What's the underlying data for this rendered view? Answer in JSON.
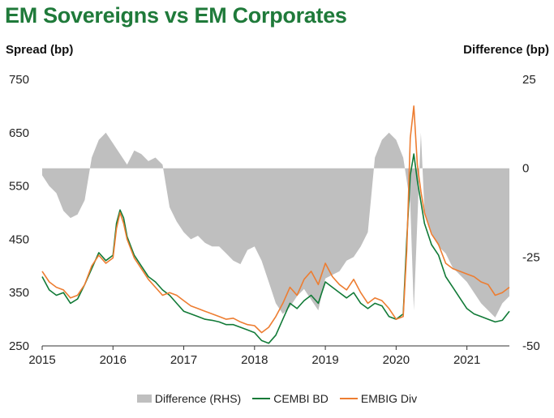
{
  "chart_data": {
    "type": "line",
    "title": "EM Sovereigns vs EM Corporates",
    "ylabel": "Spread (bp)",
    "y2label": "Difference (bp)",
    "ylim": [
      250,
      750
    ],
    "y2lim": [
      -50,
      25
    ],
    "yticks": [
      250,
      350,
      450,
      550,
      650,
      750
    ],
    "y2ticks": [
      -50,
      -25,
      0,
      25
    ],
    "xlim": [
      2015.0,
      2021.6
    ],
    "xticks": [
      "2015",
      "2016",
      "2017",
      "2018",
      "2019",
      "2020",
      "2021"
    ],
    "grid": false,
    "legend": "bottom",
    "series": [
      {
        "name": "Difference (RHS)",
        "kind": "area",
        "axis": "right",
        "color": "#bfbfbf",
        "x": [
          2015.0,
          2015.1,
          2015.2,
          2015.3,
          2015.4,
          2015.5,
          2015.6,
          2015.7,
          2015.8,
          2015.9,
          2016.0,
          2016.1,
          2016.2,
          2016.3,
          2016.4,
          2016.5,
          2016.6,
          2016.7,
          2016.8,
          2016.9,
          2017.0,
          2017.1,
          2017.2,
          2017.3,
          2017.4,
          2017.5,
          2017.6,
          2017.7,
          2017.8,
          2017.9,
          2018.0,
          2018.1,
          2018.2,
          2018.3,
          2018.4,
          2018.5,
          2018.6,
          2018.7,
          2018.8,
          2018.9,
          2019.0,
          2019.1,
          2019.2,
          2019.3,
          2019.4,
          2019.5,
          2019.6,
          2019.7,
          2019.8,
          2019.9,
          2020.0,
          2020.1,
          2020.2,
          2020.25,
          2020.3,
          2020.35,
          2020.4,
          2020.5,
          2020.6,
          2020.7,
          2020.8,
          2020.9,
          2021.0,
          2021.1,
          2021.2,
          2021.3,
          2021.4,
          2021.5,
          2021.6
        ],
        "values": [
          -2,
          -5,
          -7,
          -12,
          -14,
          -13,
          -9,
          3,
          8,
          10,
          7,
          4,
          1,
          5,
          4,
          2,
          3,
          1,
          -11,
          -15,
          -18,
          -20,
          -19,
          -21,
          -22,
          -22,
          -24,
          -26,
          -27,
          -23,
          -22,
          -26,
          -32,
          -38,
          -41,
          -39,
          -36,
          -34,
          -37,
          -40,
          -31,
          -30,
          -29,
          -26,
          -25,
          -22,
          -18,
          3,
          8,
          10,
          8,
          3,
          -10,
          -40,
          -15,
          10,
          -12,
          -18,
          -22,
          -24,
          -28,
          -30,
          -32,
          -35,
          -38,
          -40,
          -42,
          -38,
          -36
        ]
      },
      {
        "name": "CEMBI BD",
        "kind": "line",
        "axis": "left",
        "color": "#117a37",
        "x": [
          2015.0,
          2015.1,
          2015.2,
          2015.3,
          2015.4,
          2015.5,
          2015.6,
          2015.7,
          2015.8,
          2015.9,
          2016.0,
          2016.05,
          2016.1,
          2016.15,
          2016.2,
          2016.3,
          2016.4,
          2016.5,
          2016.6,
          2016.7,
          2016.8,
          2016.9,
          2017.0,
          2017.1,
          2017.2,
          2017.3,
          2017.4,
          2017.5,
          2017.6,
          2017.7,
          2017.8,
          2017.9,
          2018.0,
          2018.1,
          2018.2,
          2018.3,
          2018.4,
          2018.5,
          2018.6,
          2018.7,
          2018.8,
          2018.9,
          2019.0,
          2019.1,
          2019.2,
          2019.3,
          2019.4,
          2019.5,
          2019.6,
          2019.7,
          2019.8,
          2019.9,
          2020.0,
          2020.1,
          2020.15,
          2020.2,
          2020.25,
          2020.3,
          2020.35,
          2020.4,
          2020.5,
          2020.6,
          2020.7,
          2020.8,
          2020.9,
          2021.0,
          2021.1,
          2021.2,
          2021.3,
          2021.4,
          2021.5,
          2021.6
        ],
        "values": [
          380,
          355,
          345,
          350,
          330,
          338,
          365,
          395,
          425,
          410,
          420,
          480,
          505,
          490,
          455,
          420,
          400,
          380,
          370,
          355,
          345,
          330,
          315,
          310,
          305,
          300,
          298,
          295,
          290,
          290,
          285,
          280,
          275,
          260,
          255,
          270,
          300,
          330,
          320,
          335,
          345,
          330,
          370,
          360,
          350,
          340,
          350,
          330,
          320,
          330,
          325,
          305,
          300,
          310,
          450,
          570,
          610,
          560,
          520,
          480,
          440,
          420,
          380,
          360,
          340,
          320,
          310,
          305,
          300,
          295,
          298,
          315
        ]
      },
      {
        "name": "EMBIG Div",
        "kind": "line",
        "axis": "left",
        "color": "#ed7d31",
        "x": [
          2015.0,
          2015.1,
          2015.2,
          2015.3,
          2015.4,
          2015.5,
          2015.6,
          2015.7,
          2015.8,
          2015.9,
          2016.0,
          2016.05,
          2016.1,
          2016.15,
          2016.2,
          2016.3,
          2016.4,
          2016.5,
          2016.6,
          2016.7,
          2016.8,
          2016.9,
          2017.0,
          2017.1,
          2017.2,
          2017.3,
          2017.4,
          2017.5,
          2017.6,
          2017.7,
          2017.8,
          2017.9,
          2018.0,
          2018.1,
          2018.2,
          2018.3,
          2018.4,
          2018.5,
          2018.6,
          2018.7,
          2018.8,
          2018.9,
          2019.0,
          2019.1,
          2019.2,
          2019.3,
          2019.4,
          2019.5,
          2019.6,
          2019.7,
          2019.8,
          2019.9,
          2020.0,
          2020.1,
          2020.15,
          2020.2,
          2020.25,
          2020.3,
          2020.35,
          2020.4,
          2020.5,
          2020.6,
          2020.7,
          2020.8,
          2020.9,
          2021.0,
          2021.1,
          2021.2,
          2021.3,
          2021.4,
          2021.5,
          2021.6
        ],
        "values": [
          390,
          370,
          360,
          355,
          340,
          345,
          365,
          400,
          420,
          405,
          415,
          470,
          500,
          480,
          450,
          415,
          395,
          375,
          360,
          345,
          350,
          345,
          335,
          325,
          320,
          315,
          310,
          305,
          300,
          302,
          295,
          290,
          288,
          275,
          285,
          305,
          330,
          360,
          345,
          375,
          390,
          365,
          405,
          380,
          365,
          355,
          375,
          350,
          330,
          340,
          335,
          320,
          300,
          305,
          430,
          640,
          700,
          590,
          540,
          500,
          460,
          440,
          405,
          395,
          390,
          385,
          380,
          370,
          365,
          345,
          350,
          360
        ]
      }
    ]
  }
}
